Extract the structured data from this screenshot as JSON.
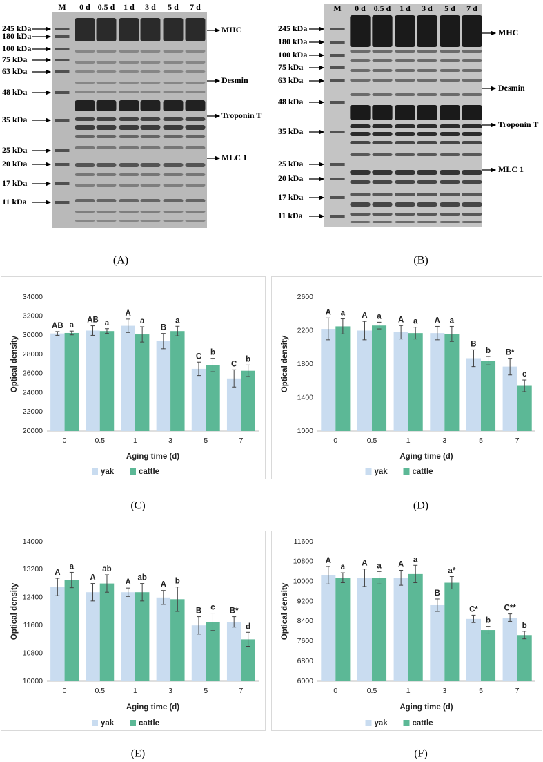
{
  "gels": [
    {
      "lanes": [
        "M",
        "0 d",
        "0.5 d",
        "1 d",
        "3 d",
        "5 d",
        "7 d"
      ],
      "markers": [
        "245 kDa",
        "180 kDa",
        "100 kDa",
        "75 kDa",
        "63 kDa",
        "48 kDa",
        "35 kDa",
        "25 kDa",
        "20 kDa",
        "17 kDa",
        "11 kDa"
      ],
      "proteins": [
        "MHC",
        "Desmin",
        "Troponin T",
        "MLC 1"
      ],
      "caption": "(A)"
    },
    {
      "lanes": [
        "M",
        "0 d",
        "0.5 d",
        "1 d",
        "3 d",
        "5 d",
        "7 d"
      ],
      "markers": [
        "245 kDa",
        "180 kDa",
        "100 kDa",
        "75 kDa",
        "63 kDa",
        "48 kDa",
        "35 kDa",
        "25 kDa",
        "20 kDa",
        "17 kDa",
        "11 kDa"
      ],
      "proteins": [
        "MHC",
        "Desmin",
        "Troponin T",
        "MLC 1"
      ],
      "caption": "(B)"
    }
  ],
  "chart_data": [
    {
      "type": "bar",
      "caption": "(C)",
      "x_label": "Aging time (d)",
      "y_label": "Optical density",
      "categories": [
        "0",
        "0.5",
        "1",
        "3",
        "5",
        "7"
      ],
      "ylim": [
        20000,
        34000
      ],
      "yticks": [
        20000,
        22000,
        24000,
        26000,
        28000,
        30000,
        32000,
        34000
      ],
      "grid": false,
      "legend": "bottom",
      "series": [
        {
          "name": "yak",
          "color": "#c9dcf0",
          "values": [
            30200,
            30500,
            31000,
            29400,
            26500,
            25500
          ],
          "errors": [
            200,
            500,
            700,
            800,
            700,
            900
          ],
          "letters": [
            "AB",
            "AB",
            "A",
            "B",
            "C",
            "C"
          ]
        },
        {
          "name": "cattle",
          "color": "#5cb896",
          "values": [
            30250,
            30450,
            30100,
            30450,
            26900,
            26300
          ],
          "errors": [
            200,
            250,
            800,
            500,
            700,
            600
          ],
          "letters": [
            "a",
            "a",
            "a",
            "a",
            "b",
            "b"
          ]
        }
      ]
    },
    {
      "type": "bar",
      "caption": "(D)",
      "x_label": "Aging time (d)",
      "y_label": "Optical density",
      "categories": [
        "0",
        "0.5",
        "1",
        "3",
        "5",
        "7"
      ],
      "ylim": [
        1000,
        2600
      ],
      "yticks": [
        1000,
        1400,
        1800,
        2200,
        2600
      ],
      "grid": false,
      "legend": "bottom",
      "series": [
        {
          "name": "yak",
          "color": "#c9dcf0",
          "values": [
            2220,
            2200,
            2180,
            2170,
            1870,
            1770
          ],
          "errors": [
            130,
            110,
            80,
            80,
            100,
            100
          ],
          "letters": [
            "A",
            "A",
            "A",
            "A",
            "B",
            "B*"
          ]
        },
        {
          "name": "cattle",
          "color": "#5cb896",
          "values": [
            2250,
            2260,
            2170,
            2160,
            1840,
            1540
          ],
          "errors": [
            90,
            40,
            70,
            90,
            50,
            70
          ],
          "letters": [
            "a",
            "a",
            "a",
            "a",
            "b",
            "c"
          ]
        }
      ]
    },
    {
      "type": "bar",
      "caption": "(E)",
      "x_label": "Aging time (d)",
      "y_label": "Optical density",
      "categories": [
        "0",
        "0.5",
        "1",
        "3",
        "5",
        "7"
      ],
      "ylim": [
        10000,
        14000
      ],
      "yticks": [
        10000,
        10800,
        11600,
        12400,
        13200,
        14000
      ],
      "grid": false,
      "legend": "bottom",
      "series": [
        {
          "name": "yak",
          "color": "#c9dcf0",
          "values": [
            12700,
            12550,
            12550,
            12400,
            11600,
            11700
          ],
          "errors": [
            250,
            250,
            120,
            200,
            250,
            150
          ],
          "letters": [
            "A",
            "A",
            "A",
            "A",
            "B",
            "B*"
          ]
        },
        {
          "name": "cattle",
          "color": "#5cb896",
          "values": [
            12900,
            12800,
            12550,
            12350,
            11700,
            11200
          ],
          "errors": [
            220,
            250,
            250,
            350,
            250,
            200
          ],
          "letters": [
            "a",
            "ab",
            "ab",
            "b",
            "c",
            "d"
          ]
        }
      ]
    },
    {
      "type": "bar",
      "caption": "(F)",
      "x_label": "Aging time (d)",
      "y_label": "Optical density",
      "categories": [
        "0",
        "0.5",
        "1",
        "3",
        "5",
        "7"
      ],
      "ylim": [
        6000,
        11600
      ],
      "yticks": [
        6000,
        6800,
        7600,
        8400,
        9200,
        10000,
        10800,
        11600
      ],
      "grid": false,
      "legend": "bottom",
      "series": [
        {
          "name": "yak",
          "color": "#c9dcf0",
          "values": [
            10250,
            10150,
            10150,
            9050,
            8500,
            8550
          ],
          "errors": [
            350,
            350,
            300,
            250,
            150,
            150
          ],
          "letters": [
            "A",
            "A",
            "A",
            "B",
            "C*",
            "C**"
          ]
        },
        {
          "name": "cattle",
          "color": "#5cb896",
          "values": [
            10150,
            10150,
            10300,
            9950,
            8050,
            7850
          ],
          "errors": [
            200,
            250,
            350,
            250,
            150,
            150
          ],
          "letters": [
            "a",
            "a",
            "a",
            "a*",
            "b",
            "b"
          ]
        }
      ]
    }
  ]
}
